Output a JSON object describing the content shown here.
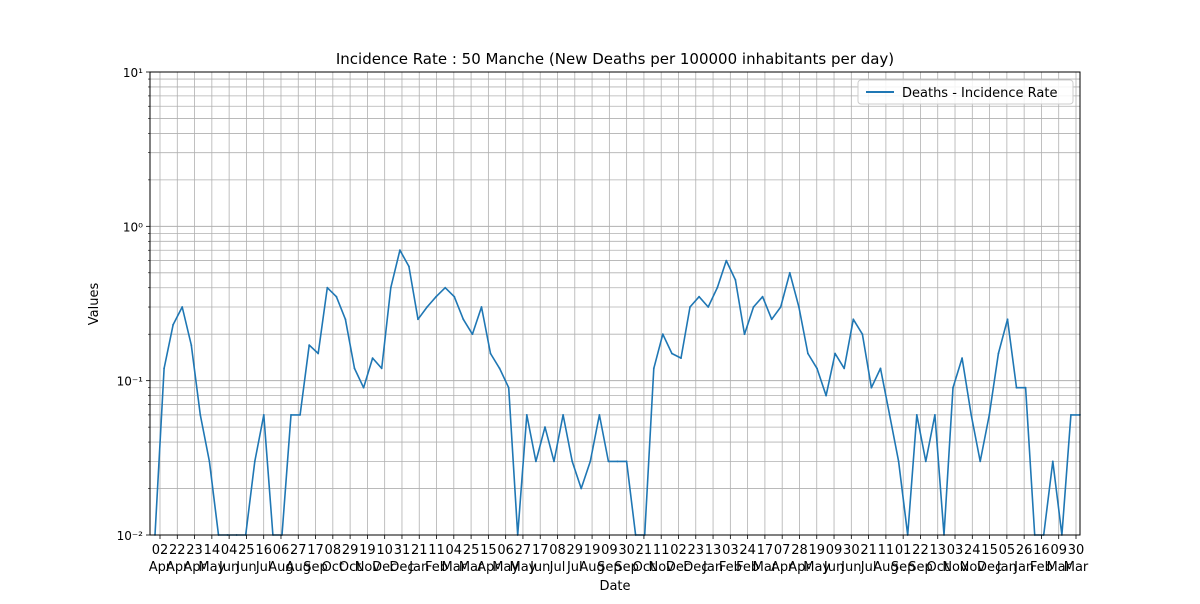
{
  "chart_data": {
    "type": "line",
    "title": "Incidence Rate : 50 Manche (New Deaths per 100000 inhabitants per day)",
    "xlabel": "Date",
    "ylabel": "Values",
    "yscale": "log",
    "ylim": [
      0.01,
      10
    ],
    "yticks": [
      {
        "value": 0.01,
        "label": "10⁻²"
      },
      {
        "value": 0.1,
        "label": "10⁻¹"
      },
      {
        "value": 1,
        "label": "10⁰"
      },
      {
        "value": 10,
        "label": "10¹"
      }
    ],
    "grid": true,
    "legend_position": "top-right",
    "x_tick_labels": [
      [
        "02",
        "Apr"
      ],
      [
        "22",
        "Apr"
      ],
      [
        "23",
        "Apr"
      ],
      [
        "14",
        "May"
      ],
      [
        "04",
        "Jun"
      ],
      [
        "25",
        "Jun"
      ],
      [
        "16",
        "Jul"
      ],
      [
        "06",
        "Aug"
      ],
      [
        "27",
        "Aug"
      ],
      [
        "17",
        "Sep"
      ],
      [
        "08",
        "Oct"
      ],
      [
        "29",
        "Oct"
      ],
      [
        "19",
        "Nov"
      ],
      [
        "10",
        "Dec"
      ],
      [
        "31",
        "Dec"
      ],
      [
        "21",
        "Jan"
      ],
      [
        "11",
        "Feb"
      ],
      [
        "04",
        "Mar"
      ],
      [
        "25",
        "Mar"
      ],
      [
        "15",
        "Apr"
      ],
      [
        "06",
        "May"
      ],
      [
        "27",
        "May"
      ],
      [
        "17",
        "Jun"
      ],
      [
        "08",
        "Jul"
      ],
      [
        "29",
        "Jul"
      ],
      [
        "19",
        "Aug"
      ],
      [
        "09",
        "Sep"
      ],
      [
        "30",
        "Sep"
      ],
      [
        "21",
        "Oct"
      ],
      [
        "11",
        "Nov"
      ],
      [
        "02",
        "Dec"
      ],
      [
        "23",
        "Dec"
      ],
      [
        "13",
        "Jan"
      ],
      [
        "03",
        "Feb"
      ],
      [
        "24",
        "Feb"
      ],
      [
        "17",
        "Mar"
      ],
      [
        "07",
        "Apr"
      ],
      [
        "28",
        "Apr"
      ],
      [
        "19",
        "May"
      ],
      [
        "09",
        "Jun"
      ],
      [
        "30",
        "Jun"
      ],
      [
        "21",
        "Jul"
      ],
      [
        "11",
        "Aug"
      ],
      [
        "01",
        "Sep"
      ],
      [
        "22",
        "Sep"
      ],
      [
        "13",
        "Oct"
      ],
      [
        "03",
        "Nov"
      ],
      [
        "24",
        "Nov"
      ],
      [
        "15",
        "Dec"
      ],
      [
        "05",
        "Jan"
      ],
      [
        "26",
        "Jan"
      ],
      [
        "16",
        "Feb"
      ],
      [
        "09",
        "Mar"
      ],
      [
        "30",
        "Mar"
      ]
    ],
    "series": [
      {
        "name": "Deaths - Incidence Rate",
        "color": "#1f77b4",
        "x": [
          "02 Apr",
          "12 Apr",
          "22 Apr",
          "23 Apr",
          "03 May",
          "14 May",
          "25 May",
          "04 Jun",
          "25 Jun",
          "16 Jul",
          "27 Jul",
          "06 Aug",
          "16 Aug",
          "27 Aug",
          "17 Sep",
          "27 Sep",
          "08 Oct",
          "18 Oct",
          "29 Oct",
          "08 Nov",
          "19 Nov",
          "29 Nov",
          "10 Dec",
          "20 Dec",
          "31 Dec",
          "10 Jan",
          "21 Jan",
          "31 Jan",
          "11 Feb",
          "21 Feb",
          "04 Mar",
          "14 Mar",
          "25 Mar",
          "04 Apr",
          "15 Apr",
          "25 Apr",
          "06 May",
          "16 May",
          "27 May",
          "06 Jun",
          "17 Jun",
          "27 Jun",
          "08 Jul",
          "18 Jul",
          "29 Jul",
          "08 Aug",
          "19 Aug",
          "29 Aug",
          "09 Sep",
          "19 Sep",
          "30 Sep",
          "10 Oct",
          "21 Oct",
          "31 Oct",
          "11 Nov",
          "21 Nov",
          "02 Dec",
          "12 Dec",
          "23 Dec",
          "02 Jan",
          "13 Jan",
          "23 Jan",
          "03 Feb",
          "13 Feb",
          "24 Feb",
          "06 Mar",
          "17 Mar",
          "27 Mar",
          "07 Apr",
          "17 Apr",
          "28 Apr",
          "08 May",
          "19 May",
          "29 May",
          "09 Jun",
          "19 Jun",
          "30 Jun",
          "10 Jul",
          "21 Jul",
          "31 Jul",
          "11 Aug",
          "21 Aug",
          "01 Sep",
          "11 Sep",
          "22 Sep",
          "02 Oct",
          "13 Oct",
          "23 Oct",
          "03 Nov",
          "13 Nov",
          "24 Nov",
          "04 Dec",
          "15 Dec",
          "25 Dec",
          "05 Jan",
          "15 Jan",
          "26 Jan",
          "05 Feb",
          "16 Feb",
          "26 Feb",
          "09 Mar",
          "19 Mar",
          "30 Mar"
        ],
        "values": [
          0.01,
          0.12,
          0.23,
          0.3,
          0.17,
          0.06,
          0.03,
          0.01,
          0.01,
          0.01,
          0.01,
          0.03,
          0.06,
          0.01,
          0.01,
          0.06,
          0.06,
          0.17,
          0.15,
          0.4,
          0.35,
          0.25,
          0.12,
          0.09,
          0.14,
          0.12,
          0.4,
          0.7,
          0.55,
          0.25,
          0.3,
          0.35,
          0.4,
          0.35,
          0.25,
          0.2,
          0.3,
          0.15,
          0.12,
          0.09,
          0.01,
          0.06,
          0.03,
          0.05,
          0.03,
          0.06,
          0.03,
          0.02,
          0.03,
          0.06,
          0.03,
          0.03,
          0.03,
          0.01,
          0.01,
          0.12,
          0.2,
          0.15,
          0.14,
          0.3,
          0.35,
          0.3,
          0.4,
          0.6,
          0.45,
          0.2,
          0.3,
          0.35,
          0.25,
          0.3,
          0.5,
          0.3,
          0.15,
          0.12,
          0.08,
          0.15,
          0.12,
          0.25,
          0.2,
          0.09,
          0.12,
          0.06,
          0.03,
          0.01,
          0.06,
          0.03,
          0.06,
          0.01,
          0.09,
          0.14,
          0.06,
          0.03,
          0.06,
          0.15,
          0.25,
          0.09,
          0.09,
          0.01,
          0.01,
          0.03,
          0.01,
          0.06,
          0.06
        ]
      }
    ]
  }
}
